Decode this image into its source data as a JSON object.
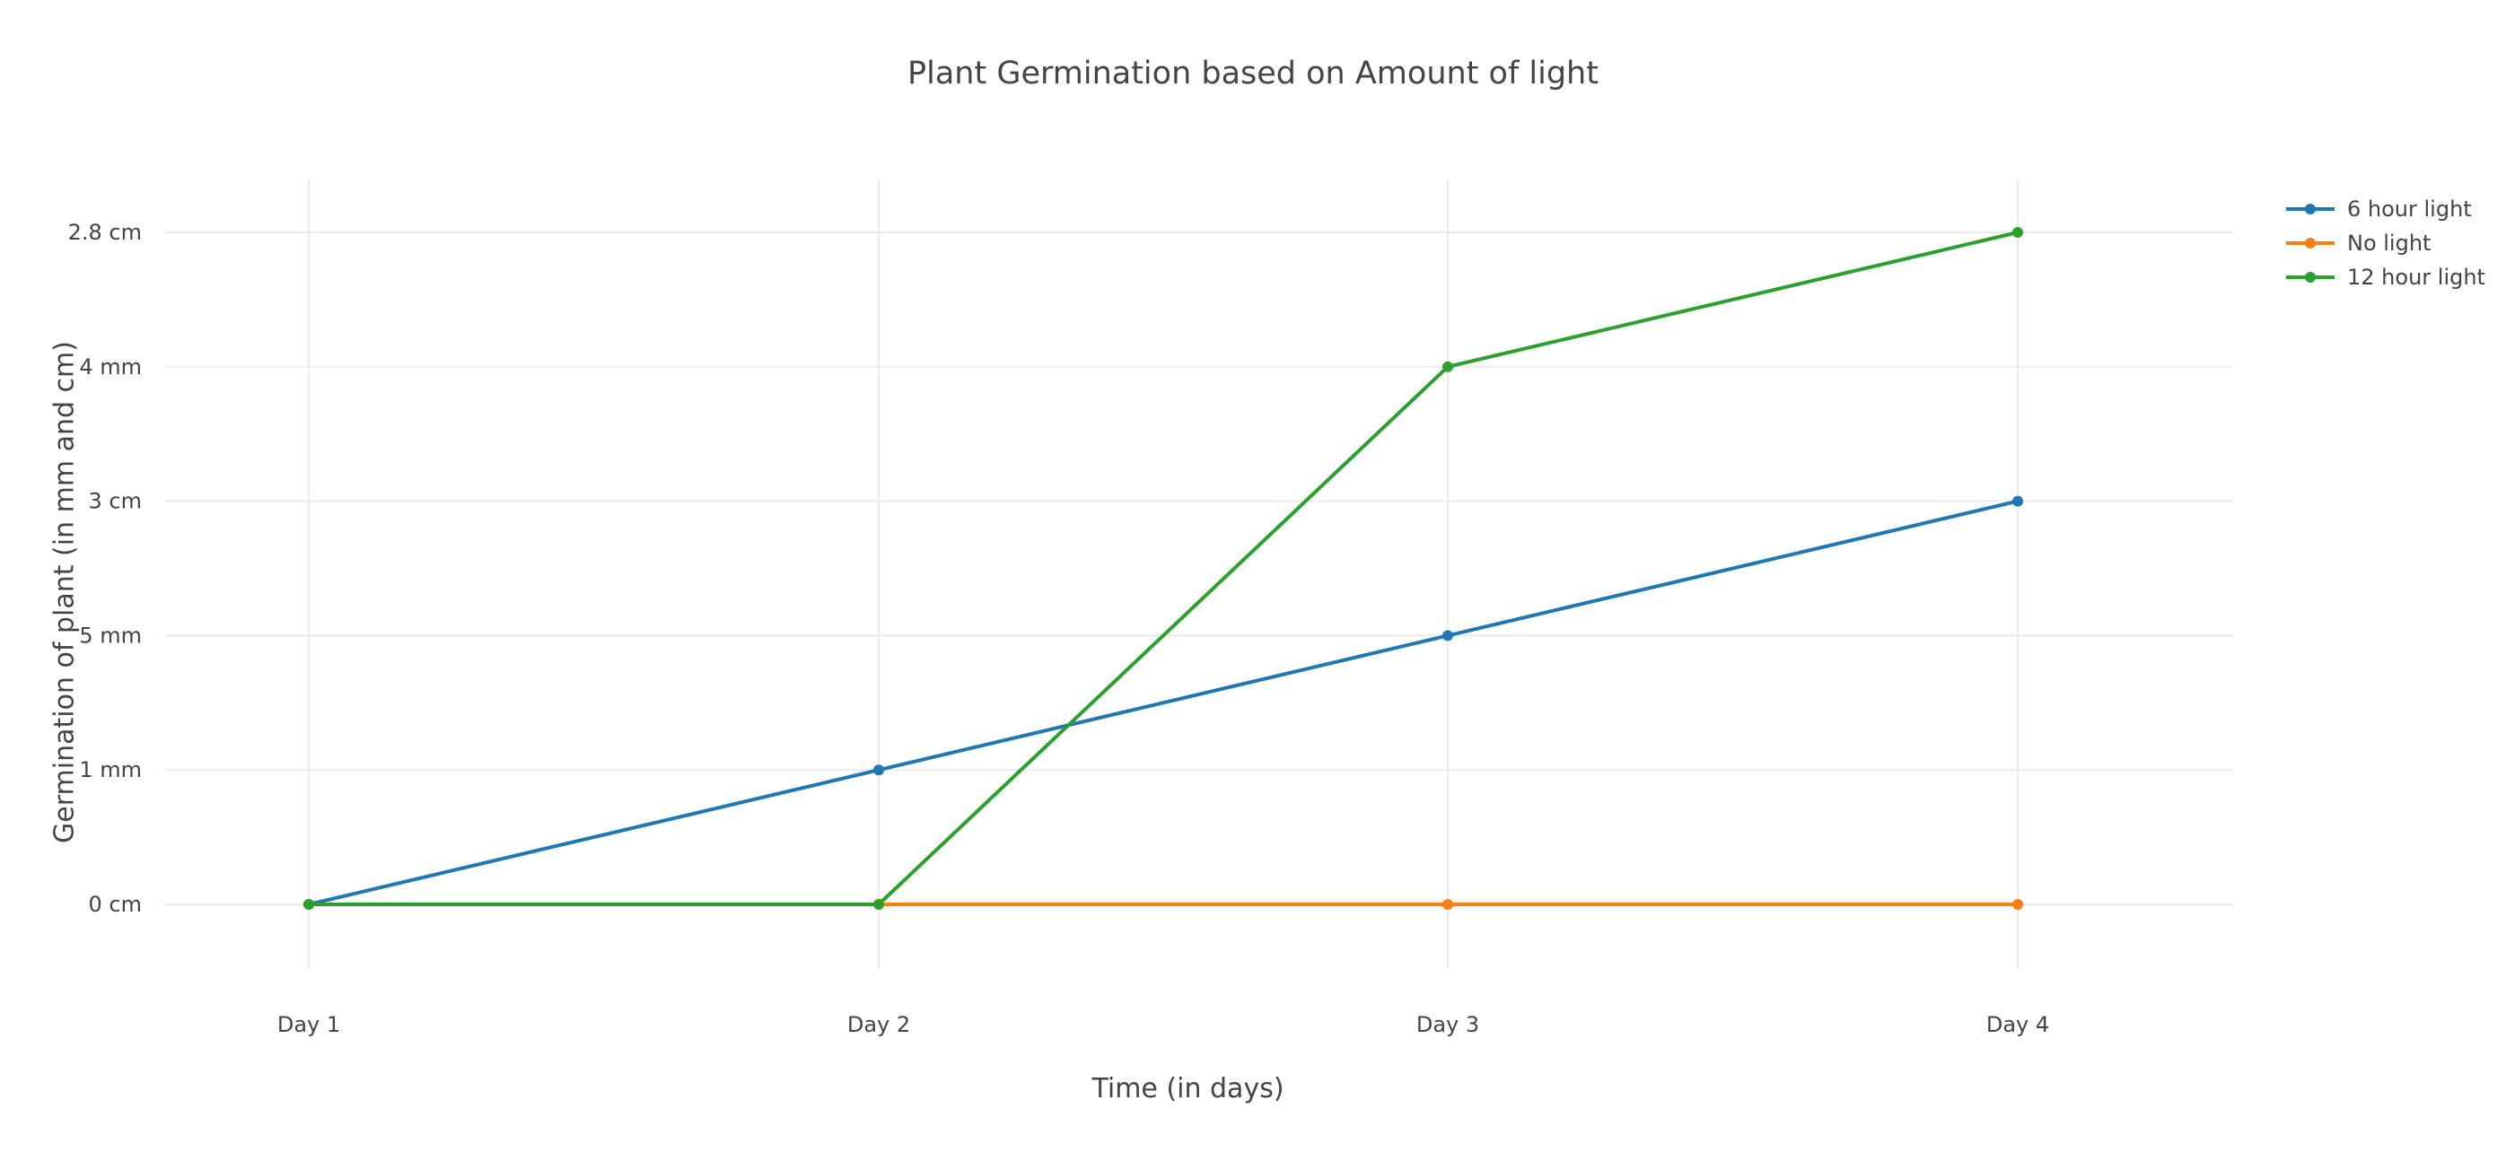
{
  "chart_data": {
    "type": "line",
    "title": "Plant Germination based on Amount of light",
    "xlabel": "Time (in days)",
    "ylabel": "Germination of plant (in mm and cm)",
    "categories": [
      "Day 1",
      "Day 2",
      "Day 3",
      "Day 4"
    ],
    "y_categories": [
      "0 cm",
      "1 mm",
      "5 mm",
      "3 cm",
      "4 mm",
      "2.8 cm"
    ],
    "grid": true,
    "legend_position": "top-right",
    "series": [
      {
        "name": "6 hour light",
        "color": "#1f77b4",
        "values": [
          "0 cm",
          "1 mm",
          "5 mm",
          "3 cm"
        ]
      },
      {
        "name": "No light",
        "color": "#ff7f0e",
        "values": [
          "0 cm",
          "0 cm",
          "0 cm",
          "0 cm"
        ]
      },
      {
        "name": "12 hour light",
        "color": "#2ca02c",
        "values": [
          "0 cm",
          "0 cm",
          "4 mm",
          "2.8 cm"
        ]
      }
    ]
  }
}
